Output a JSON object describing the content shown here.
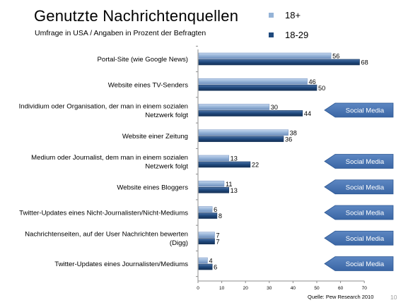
{
  "chart_data": {
    "type": "bar",
    "orientation": "horizontal",
    "title": "Genutzte Nachrichtenquellen",
    "subtitle": "Umfrage in USA / Angaben in Prozent der Befragten",
    "categories": [
      [
        "Portal-Site (wie Google News)"
      ],
      [
        "Website eines TV-Senders"
      ],
      [
        "Individium oder Organisation, der man in einem sozialen",
        "Netzwerk folgt"
      ],
      [
        "Website einer Zeitung"
      ],
      [
        "Medium oder Journalist, dem man in einem sozialen",
        "Netzwerk folgt"
      ],
      [
        "Website eines Bloggers"
      ],
      [
        "Twitter-Updates eines Nicht-Journalisten/Nicht-Mediums"
      ],
      [
        "Nachrichtenseiten, auf der User Nachrichten bewerten",
        "(Digg)"
      ],
      [
        "Twitter-Updates eines Journalisten/Mediums"
      ]
    ],
    "series": [
      {
        "name": "18+",
        "color": "#95b3d7",
        "values": [
          56,
          46,
          30,
          38,
          13,
          11,
          6,
          7,
          4
        ]
      },
      {
        "name": "18-29",
        "color": "#1f497d",
        "values": [
          68,
          50,
          44,
          36,
          22,
          13,
          8,
          7,
          6
        ]
      }
    ],
    "xlim": [
      0,
      70
    ],
    "xticks": [
      0,
      10,
      20,
      30,
      40,
      50,
      60,
      70
    ],
    "legend_position": "top-right",
    "grid": false,
    "annotations": [
      {
        "category_index": 2,
        "text": "Social Media"
      },
      {
        "category_index": 4,
        "text": "Social Media"
      },
      {
        "category_index": 5,
        "text": "Social Media"
      },
      {
        "category_index": 6,
        "text": "Social Media"
      },
      {
        "category_index": 7,
        "text": "Social Media"
      },
      {
        "category_index": 8,
        "text": "Social Media"
      }
    ],
    "source": "Quelle: Pew Research 2010",
    "slide_number": "10"
  }
}
